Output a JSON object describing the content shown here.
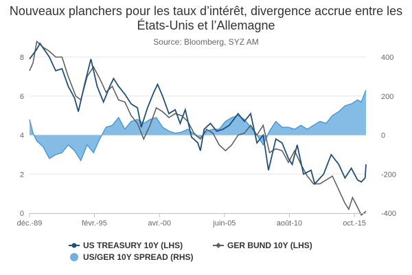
{
  "chart_data": {
    "type": "line",
    "title": "Nouveaux planchers pour les taux d’intérêt, divergence accrue entre les États-Unis et l’Allemagne",
    "subtitle": "Source: Bloomberg, SYZ AM",
    "x_tick_labels": [
      "déc.-89",
      "févr.-95",
      "avr.-00",
      "juin-05",
      "août-10",
      "oct.-15"
    ],
    "x_tick_years": [
      1989.92,
      1995.08,
      2000.25,
      2005.42,
      2010.58,
      2015.75
    ],
    "x_range": [
      1989.92,
      2016.67
    ],
    "left_axis": {
      "ticks": [
        0,
        2,
        4,
        6,
        8
      ],
      "ylim": [
        0,
        8
      ]
    },
    "right_axis": {
      "ticks": [
        -400,
        -200,
        0,
        200,
        400
      ],
      "ylim": [
        -400,
        400
      ]
    },
    "colors": {
      "us": "#1f4e79",
      "ger": "#5f5f5f",
      "spread": "#6fb0e0"
    },
    "series": [
      {
        "name": "US TREASURY 10Y (LHS)",
        "axis": "left",
        "type": "line",
        "x": [
          1989.92,
          1990.5,
          1990.75,
          1991.5,
          1992,
          1992.5,
          1993,
          1993.5,
          1993.8,
          1994.3,
          1994.8,
          1995.3,
          1995.8,
          1996.3,
          1996.6,
          1997,
          1997.5,
          1998,
          1998.5,
          1998.8,
          1999.3,
          1999.8,
          2000.1,
          2000.5,
          2001,
          2001.5,
          2001.9,
          2002.3,
          2002.8,
          2003.3,
          2003.5,
          2003.8,
          2004.3,
          2004.8,
          2005.3,
          2005.8,
          2006.5,
          2007,
          2007.5,
          2008,
          2008.5,
          2008.92,
          2009.5,
          2010,
          2010.5,
          2010.8,
          2011.2,
          2011.7,
          2012.3,
          2012.6,
          2013.3,
          2013.9,
          2014.5,
          2015,
          2015.5,
          2016,
          2016.3,
          2016.6,
          2016.67
        ],
        "y": [
          7.9,
          8.4,
          8.7,
          8.0,
          7.3,
          7.4,
          6.5,
          5.9,
          5.2,
          6.6,
          7.9,
          6.5,
          5.7,
          6.5,
          6.9,
          6.5,
          6.1,
          5.6,
          5.4,
          4.4,
          5.4,
          6.2,
          6.6,
          6.0,
          5.1,
          5.3,
          4.6,
          5.3,
          3.9,
          3.6,
          3.2,
          4.3,
          4.6,
          4.2,
          4.3,
          4.5,
          5.1,
          4.7,
          5.1,
          3.6,
          4.0,
          2.2,
          3.8,
          3.6,
          2.8,
          2.5,
          3.5,
          2.0,
          2.2,
          1.5,
          2.0,
          3.0,
          2.5,
          1.8,
          2.3,
          1.7,
          1.6,
          1.8,
          2.5
        ]
      },
      {
        "name": "GER BUND 10Y (LHS)",
        "axis": "left",
        "type": "line",
        "x": [
          1989.92,
          1990.2,
          1990.5,
          1991,
          1991.5,
          1992,
          1992.5,
          1993,
          1993.6,
          1994,
          1994.5,
          1995,
          1995.5,
          1996,
          1996.5,
          1997,
          1997.5,
          1998,
          1998.5,
          1999,
          1999.5,
          2000,
          2000.5,
          2001,
          2001.5,
          2002,
          2002.5,
          2003,
          2003.5,
          2004,
          2004.5,
          2005,
          2005.5,
          2006,
          2006.5,
          2007,
          2007.5,
          2008,
          2008.5,
          2009,
          2009.5,
          2010,
          2010.5,
          2011,
          2011.5,
          2012,
          2012.5,
          2013,
          2013.5,
          2014,
          2014.5,
          2015,
          2015.3,
          2015.6,
          2016,
          2016.3,
          2016.67
        ],
        "y": [
          7.3,
          7.7,
          8.8,
          8.5,
          8.3,
          8.0,
          8.0,
          7.0,
          6.0,
          5.8,
          7.0,
          7.5,
          6.9,
          6.2,
          6.5,
          5.8,
          5.7,
          5.0,
          4.6,
          3.8,
          4.5,
          5.4,
          5.2,
          4.9,
          5.1,
          5.0,
          4.7,
          4.1,
          3.8,
          4.3,
          4.1,
          3.5,
          3.2,
          3.5,
          4.0,
          4.1,
          4.5,
          4.0,
          4.5,
          3.1,
          3.3,
          3.2,
          2.6,
          3.2,
          2.5,
          1.9,
          1.5,
          1.5,
          1.7,
          1.9,
          1.2,
          0.5,
          0.2,
          0.8,
          0.3,
          -0.1,
          0.1
        ]
      },
      {
        "name": "US/GER 10Y SPREAD (RHS)",
        "axis": "right",
        "type": "area",
        "x": [
          1989.92,
          1990.2,
          1990.5,
          1991,
          1991.5,
          1992,
          1992.5,
          1993,
          1993.5,
          1994,
          1994.5,
          1995,
          1995.5,
          1996,
          1996.5,
          1997,
          1997.5,
          1998,
          1998.5,
          1999,
          1999.5,
          2000,
          2000.5,
          2001,
          2001.5,
          2002,
          2002.5,
          2003,
          2003.5,
          2004,
          2004.5,
          2005,
          2005.5,
          2006,
          2006.5,
          2007,
          2007.5,
          2008,
          2008.5,
          2009,
          2009.5,
          2010,
          2010.5,
          2011,
          2011.5,
          2012,
          2012.5,
          2013,
          2013.5,
          2014,
          2014.5,
          2015,
          2015.5,
          2016,
          2016.3,
          2016.67
        ],
        "y": [
          80,
          10,
          -30,
          -60,
          -120,
          -100,
          -90,
          -50,
          -80,
          -130,
          -50,
          -90,
          -20,
          40,
          50,
          90,
          30,
          70,
          80,
          60,
          80,
          90,
          40,
          20,
          10,
          15,
          30,
          5,
          -20,
          20,
          30,
          30,
          70,
          90,
          100,
          80,
          40,
          0,
          -50,
          20,
          70,
          40,
          40,
          30,
          50,
          30,
          50,
          70,
          60,
          100,
          120,
          150,
          160,
          180,
          170,
          230
        ]
      }
    ],
    "legend_position": "bottom"
  }
}
